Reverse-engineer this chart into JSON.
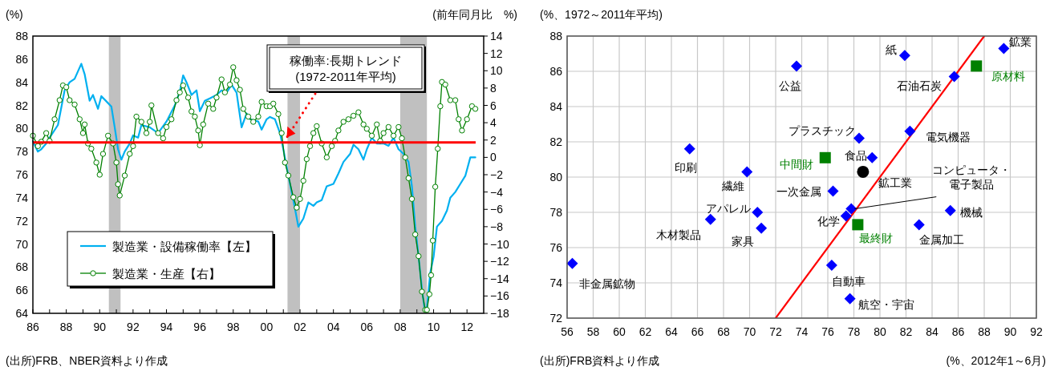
{
  "chart_data": [
    {
      "type": "line",
      "ylabel": "(%)",
      "y2label": "(前年同月比　%)",
      "xlim": [
        1986,
        2013
      ],
      "xticks": [
        {
          "value": 1986,
          "label": "86"
        },
        {
          "value": 1987,
          "label": null
        },
        {
          "value": 1988,
          "label": "88"
        },
        {
          "value": 1989,
          "label": null
        },
        {
          "value": 1990,
          "label": "90"
        },
        {
          "value": 1991,
          "label": null
        },
        {
          "value": 1992,
          "label": "92"
        },
        {
          "value": 1993,
          "label": null
        },
        {
          "value": 1994,
          "label": "94"
        },
        {
          "value": 1995,
          "label": null
        },
        {
          "value": 1996,
          "label": "96"
        },
        {
          "value": 1997,
          "label": null
        },
        {
          "value": 1998,
          "label": "98"
        },
        {
          "value": 1999,
          "label": null
        },
        {
          "value": 2000,
          "label": "00"
        },
        {
          "value": 2001,
          "label": null
        },
        {
          "value": 2002,
          "label": "02"
        },
        {
          "value": 2003,
          "label": null
        },
        {
          "value": 2004,
          "label": "04"
        },
        {
          "value": 2005,
          "label": null
        },
        {
          "value": 2006,
          "label": "06"
        },
        {
          "value": 2007,
          "label": null
        },
        {
          "value": 2008,
          "label": "08"
        },
        {
          "value": 2009,
          "label": null
        },
        {
          "value": 2010,
          "label": "10"
        },
        {
          "value": 2011,
          "label": null
        },
        {
          "value": 2012,
          "label": "12"
        }
      ],
      "ylim": [
        64,
        88
      ],
      "yticks": [
        64,
        66,
        68,
        70,
        72,
        74,
        76,
        78,
        80,
        82,
        84,
        86,
        88
      ],
      "y2lim": [
        -18,
        14
      ],
      "y2ticks": [
        {
          "value": -18,
          "label": "−18"
        },
        {
          "value": -16,
          "label": "−16"
        },
        {
          "value": -14,
          "label": "−14"
        },
        {
          "value": -12,
          "label": "−12"
        },
        {
          "value": -10,
          "label": "−10"
        },
        {
          "value": -8,
          "label": "−8"
        },
        {
          "value": -6,
          "label": "−6"
        },
        {
          "value": -4,
          "label": "−4"
        },
        {
          "value": -2,
          "label": "−2"
        },
        0,
        2,
        4,
        6,
        8,
        10,
        12,
        14
      ],
      "legend": "bottom left",
      "grid": false,
      "series": [
        {
          "name": "製造業・設備稼働率【左】",
          "color": "#00b0f0",
          "x": [
            1986.0,
            1986.3,
            1986.5,
            1986.8,
            1987.0,
            1987.5,
            1987.9,
            1988.2,
            1988.5,
            1988.9,
            1989.1,
            1989.4,
            1989.6,
            1989.9,
            1990.1,
            1990.5,
            1990.7,
            1990.9,
            1991.1,
            1991.3,
            1991.5,
            1991.8,
            1992.0,
            1992.3,
            1992.5,
            1993.0,
            1993.5,
            1994.0,
            1994.5,
            1994.8,
            1995.0,
            1995.2,
            1995.5,
            1995.8,
            1996.0,
            1996.3,
            1996.6,
            1997.0,
            1997.3,
            1997.6,
            1997.9,
            1998.2,
            1998.5,
            1998.8,
            1999.0,
            1999.5,
            1999.7,
            2000.0,
            2000.2,
            2000.5,
            2000.8,
            2001.0,
            2001.3,
            2001.6,
            2001.9,
            2002.2,
            2002.5,
            2002.8,
            2003.0,
            2003.3,
            2003.6,
            2004.0,
            2004.3,
            2004.6,
            2005.0,
            2005.2,
            2005.5,
            2005.8,
            2006.0,
            2006.3,
            2006.6,
            2007.0,
            2007.3,
            2007.6,
            2007.9,
            2008.2,
            2008.5,
            2008.7,
            2008.9,
            2009.1,
            2009.3,
            2009.45,
            2009.6,
            2009.8,
            2010.0,
            2010.2,
            2010.5,
            2010.8,
            2011.0,
            2011.3,
            2011.6,
            2011.9,
            2012.2,
            2012.4,
            2012.5
          ],
          "values": [
            78.9,
            78.0,
            78.2,
            78.7,
            79.2,
            80.3,
            83.3,
            84.0,
            84.3,
            85.6,
            84.7,
            82.4,
            82.9,
            81.7,
            82.8,
            82.2,
            81.9,
            80.1,
            78.2,
            77.3,
            78.0,
            78.7,
            79.4,
            79.2,
            80.3,
            80.1,
            79.6,
            80.6,
            82.0,
            83.2,
            84.6,
            84.0,
            82.9,
            83.3,
            81.5,
            82.4,
            82.6,
            82.9,
            83.3,
            83.1,
            83.8,
            83.1,
            80.1,
            81.3,
            80.8,
            80.6,
            79.9,
            80.8,
            81.0,
            80.8,
            79.6,
            78.2,
            75.9,
            73.8,
            71.5,
            72.2,
            73.6,
            73.3,
            73.6,
            73.8,
            75.0,
            75.2,
            76.1,
            77.1,
            77.8,
            78.6,
            78.2,
            77.3,
            78.2,
            79.2,
            78.7,
            78.7,
            78.5,
            79.2,
            78.2,
            77.8,
            77.1,
            75.0,
            71.5,
            68.9,
            66.1,
            64.5,
            64.5,
            67.5,
            68.9,
            71.5,
            72.0,
            72.9,
            74.0,
            74.5,
            75.2,
            75.9,
            77.5,
            77.5,
            77.5
          ]
        },
        {
          "name": "製造業・生産【右】",
          "color": "#008000",
          "axis": "y2",
          "marker": "circle",
          "x": [
            1986.0,
            1986.3,
            1986.5,
            1986.8,
            1987.0,
            1987.3,
            1987.6,
            1987.8,
            1988.0,
            1988.2,
            1988.5,
            1988.8,
            1989.0,
            1989.1,
            1989.3,
            1989.5,
            1989.8,
            1990.0,
            1990.2,
            1990.5,
            1990.8,
            1991.0,
            1991.1,
            1991.2,
            1991.5,
            1991.8,
            1992.0,
            1992.2,
            1992.5,
            1992.8,
            1993.0,
            1993.1,
            1993.5,
            1993.8,
            1994.0,
            1994.3,
            1994.6,
            1994.8,
            1995.0,
            1995.3,
            1995.5,
            1995.7,
            1995.9,
            1996.0,
            1996.2,
            1996.5,
            1996.8,
            1997.0,
            1997.3,
            1997.5,
            1997.8,
            1998.0,
            1998.2,
            1998.4,
            1998.6,
            1998.9,
            1999.2,
            1999.5,
            1999.7,
            2000.0,
            2000.2,
            2000.4,
            2000.7,
            2000.9,
            2001.1,
            2001.3,
            2001.6,
            2001.8,
            2002.0,
            2002.2,
            2002.4,
            2002.6,
            2002.8,
            2003.0,
            2003.3,
            2003.6,
            2003.9,
            2004.1,
            2004.3,
            2004.6,
            2004.9,
            2005.2,
            2005.5,
            2005.8,
            2006.0,
            2006.3,
            2006.6,
            2006.8,
            2007.0,
            2007.3,
            2007.6,
            2007.9,
            2008.1,
            2008.3,
            2008.5,
            2008.7,
            2008.9,
            2009.1,
            2009.3,
            2009.5,
            2009.6,
            2009.75,
            2009.85,
            2009.95,
            2010.1,
            2010.25,
            2010.4,
            2010.5,
            2010.7,
            2011.0,
            2011.3,
            2011.5,
            2011.7,
            2012.0,
            2012.3,
            2012.5
          ],
          "values": [
            2.5,
            1.3,
            1.8,
            2.8,
            1.9,
            4.4,
            6.6,
            8.3,
            8.1,
            6.6,
            6.1,
            4.4,
            2.8,
            3.8,
            1.6,
            1.0,
            -0.6,
            -2.0,
            0.4,
            2.5,
            1.6,
            -0.6,
            -3.1,
            -4.4,
            -2.1,
            0.4,
            1.3,
            4.7,
            4.1,
            2.8,
            4.1,
            6.0,
            2.8,
            2.2,
            3.5,
            4.4,
            6.6,
            7.5,
            8.3,
            6.9,
            5.3,
            4.7,
            3.1,
            1.4,
            3.8,
            6.2,
            5.6,
            6.9,
            9.0,
            7.5,
            8.4,
            10.4,
            8.9,
            7.8,
            5.6,
            4.7,
            4.1,
            4.7,
            6.4,
            5.9,
            5.9,
            6.2,
            5.0,
            2.8,
            -0.6,
            -2.1,
            -4.6,
            -5.8,
            -4.8,
            -2.7,
            -0.2,
            1.3,
            2.8,
            3.6,
            1.6,
            0.0,
            1.3,
            1.9,
            3.1,
            4.1,
            4.4,
            4.8,
            5.2,
            3.8,
            3.3,
            2.5,
            3.8,
            1.9,
            2.8,
            3.5,
            2.5,
            3.5,
            2.2,
            0.0,
            -2.4,
            -4.8,
            -8.9,
            -11.4,
            -15.5,
            -17.6,
            -17.6,
            -15.8,
            -13.6,
            -9.6,
            -3.4,
            1.0,
            5.9,
            8.7,
            8.4,
            6.6,
            6.6,
            4.4,
            3.1,
            4.4,
            5.9,
            5.6
          ]
        }
      ],
      "bands": [
        {
          "axis": "x",
          "from": 1990.55,
          "to": 1991.25,
          "color": "#c0c0c0"
        },
        {
          "axis": "x",
          "from": 2001.25,
          "to": 2002.0,
          "color": "#c0c0c0"
        },
        {
          "axis": "x",
          "from": 2008.0,
          "to": 2009.6,
          "color": "#c0c0c0"
        }
      ],
      "ref_lines": [
        {
          "axis": "y",
          "value": 78.8,
          "color": "#ff0000"
        }
      ],
      "annotations": [
        {
          "text": "稼働率:長期トレンド\n(1972-2011年平均)",
          "x": 2001.2,
          "y": 79.2
        },
        "(出所)FRB、NBER資料より作成"
      ]
    },
    {
      "type": "scatter",
      "ylabel": "(%、1972～2011年平均)",
      "xlabel": "(%、2012年1～6月)",
      "xlim": [
        56,
        92
      ],
      "xticks": [
        56,
        58,
        60,
        62,
        64,
        66,
        68,
        70,
        72,
        74,
        76,
        78,
        80,
        82,
        84,
        86,
        88,
        90,
        92
      ],
      "ylim": [
        72,
        88
      ],
      "yticks": [
        72,
        74,
        76,
        78,
        80,
        82,
        84,
        86,
        88
      ],
      "grid": true,
      "series": [
        {
          "color": "#0000ff",
          "marker": "diamond",
          "x": [
            56.4,
            65.4,
            69.8,
            70.6,
            67.0,
            70.9,
            73.6,
            81.9,
            89.5,
            85.7,
            78.4,
            82.3,
            79.4,
            76.4,
            77.8,
            77.4,
            85.4,
            83.0,
            76.3,
            77.7
          ],
          "values": [
            75.1,
            81.6,
            80.3,
            78.0,
            77.6,
            77.1,
            86.3,
            86.9,
            87.3,
            85.7,
            82.2,
            82.6,
            81.1,
            79.2,
            78.2,
            77.8,
            78.1,
            77.3,
            75.0,
            73.1
          ],
          "value_labels": [
            "非金属鉱物",
            "印刷",
            "繊維",
            "アパレル",
            "木材製品",
            "家具",
            "公益",
            "紙",
            "鉱業",
            "石油石炭",
            "プラスチック",
            "電気機器",
            "食品",
            "一次金属",
            "コンピュータ・電子製品",
            "化学",
            "機械",
            "金属加工",
            "自動車",
            "航空・宇宙"
          ]
        },
        {
          "color": "#008000",
          "marker": "square",
          "x": [
            75.8,
            78.3,
            87.4
          ],
          "values": [
            81.1,
            77.3,
            86.3
          ],
          "value_labels": [
            "中間財",
            "最終財",
            "原材料"
          ]
        },
        {
          "color": "#000000",
          "marker": "circle",
          "x": [
            78.7
          ],
          "values": [
            80.3
          ],
          "value_labels": [
            "鉱工業"
          ]
        },
        {
          "type": "line",
          "color": "#ff0000",
          "x": [
            72,
            88
          ],
          "values": [
            72,
            88
          ]
        }
      ],
      "annotations": [
        "(出所)FRB資料より作成"
      ]
    }
  ]
}
